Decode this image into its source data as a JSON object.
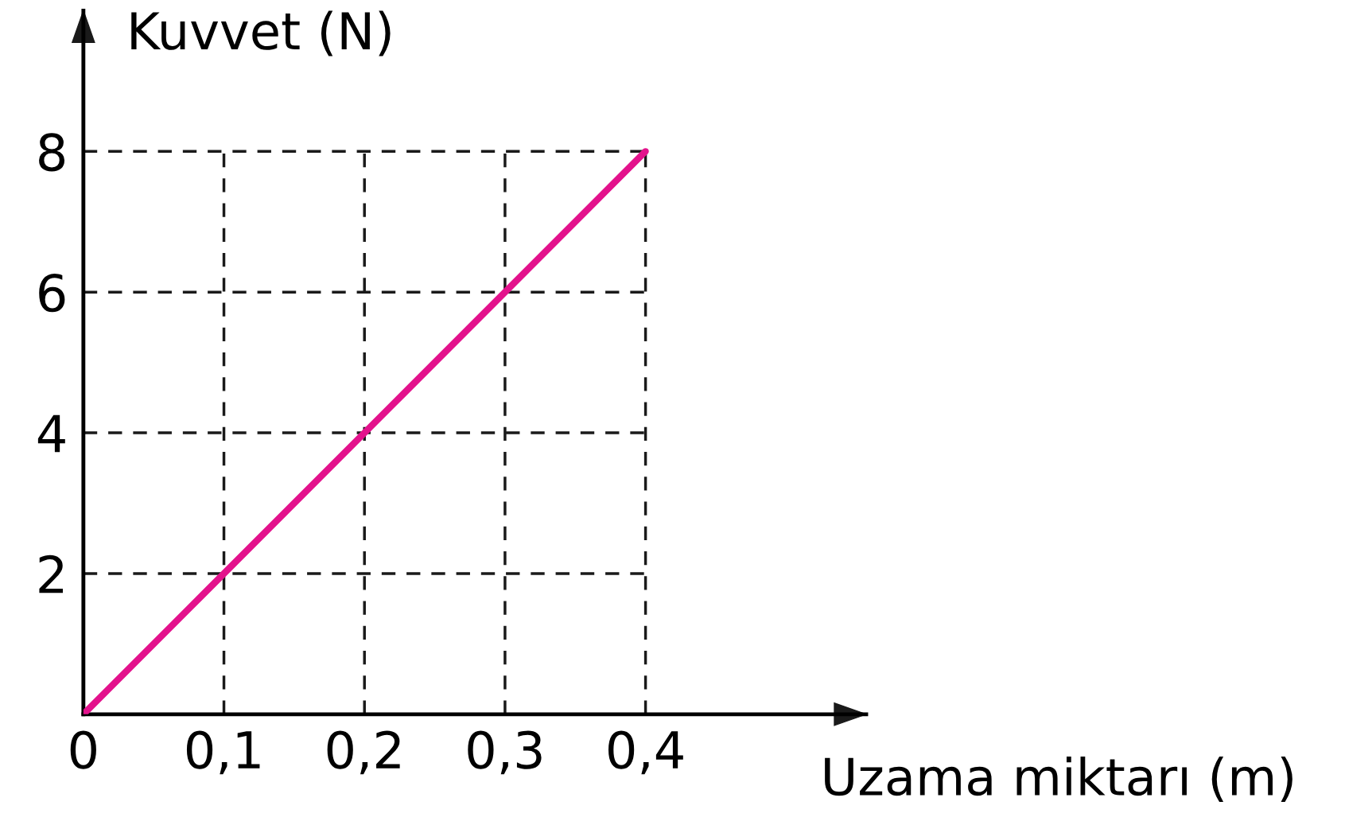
{
  "chart_data": {
    "type": "line",
    "xlabel": "Uzama miktarı (m)",
    "ylabel": "Kuvvet (N)",
    "x": [
      0,
      0.4
    ],
    "series": [
      {
        "color": "#e3128c",
        "values": [
          0,
          8
        ]
      }
    ],
    "xlim": [
      0,
      0.557
    ],
    "ylim": [
      0,
      10
    ],
    "xticks": [
      {
        "value": 0,
        "label": "0"
      },
      {
        "value": 0.1,
        "label": "0,1"
      },
      {
        "value": 0.2,
        "label": "0,2"
      },
      {
        "value": 0.3,
        "label": "0,3"
      },
      {
        "value": 0.4,
        "label": "0,4"
      }
    ],
    "yticks": [
      2,
      4,
      6,
      8
    ],
    "grid": true,
    "line_style": "solid",
    "marker": "none",
    "legend": false
  }
}
